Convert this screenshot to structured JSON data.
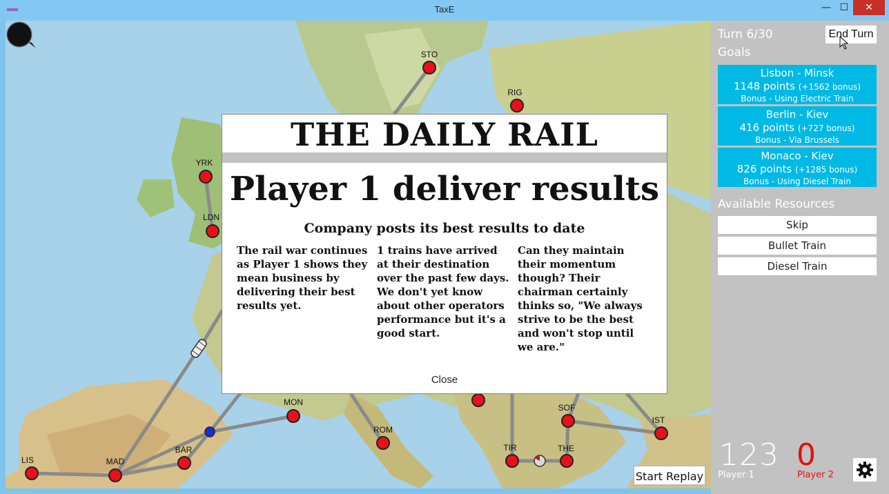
{
  "window": {
    "title": "TaxE",
    "minimize_glyph": "—",
    "maximize_glyph": "☐",
    "close_glyph": "✕"
  },
  "map": {
    "cities": [
      {
        "id": "STO",
        "label": "STO"
      },
      {
        "id": "RIG",
        "label": "RIG"
      },
      {
        "id": "YRK",
        "label": "YRK"
      },
      {
        "id": "LDN",
        "label": "LDN"
      },
      {
        "id": "MON",
        "label": "MON"
      },
      {
        "id": "ROM",
        "label": "ROM"
      },
      {
        "id": "SOF",
        "label": "SOF"
      },
      {
        "id": "IST",
        "label": "IST"
      },
      {
        "id": "TIR",
        "label": "TIR"
      },
      {
        "id": "THE",
        "label": "THE"
      },
      {
        "id": "LIS",
        "label": "LIS"
      },
      {
        "id": "MAD",
        "label": "MAD"
      },
      {
        "id": "BAR",
        "label": "BAR"
      }
    ],
    "zoom_icon": "zoom-icon"
  },
  "newspaper": {
    "masthead": "THE DAILY RAIL",
    "headline": "Player 1 deliver results",
    "subhead": "Company posts its best results to date",
    "col1": "The rail war continues as Player 1 shows they mean business by delivering their best results yet.",
    "col2": "1 trains have arrived at their destination over the past few days.  We don't yet know about other operators performance but it's a good start.",
    "col3": "Can they maintain their momentum though?  Their chairman certainly thinks so, \"We always strive to be the best and won't stop until we are.\"",
    "close_label": "Close"
  },
  "panel": {
    "turn": "Turn 6/30",
    "end_turn_label": "End Turn",
    "goals_label": "Goals",
    "goals": [
      {
        "route": "Lisbon - Minsk",
        "points": "1148 points",
        "bonus_points": "(+1562 bonus)",
        "bonus": "Bonus - Using Electric Train"
      },
      {
        "route": "Berlin - Kiev",
        "points": "416 points",
        "bonus_points": "(+727 bonus)",
        "bonus": "Bonus - Via Brussels"
      },
      {
        "route": "Monaco - Kiev",
        "points": "826 points",
        "bonus_points": "(+1285 bonus)",
        "bonus": "Bonus - Using Diesel Train"
      }
    ],
    "resources_label": "Available Resources",
    "resources": [
      "Skip",
      "Bullet Train",
      "Diesel Train"
    ],
    "player1": {
      "score": "123",
      "name": "Player 1"
    },
    "player2": {
      "score": "0",
      "name": "Player 2"
    },
    "settings_icon": "gear-icon"
  },
  "replay_label": "Start Replay",
  "colors": {
    "goal_bg": "#00b9e4",
    "panel_bg": "#c2c2c2",
    "station": "#e8101a",
    "player2": "#e31010"
  }
}
